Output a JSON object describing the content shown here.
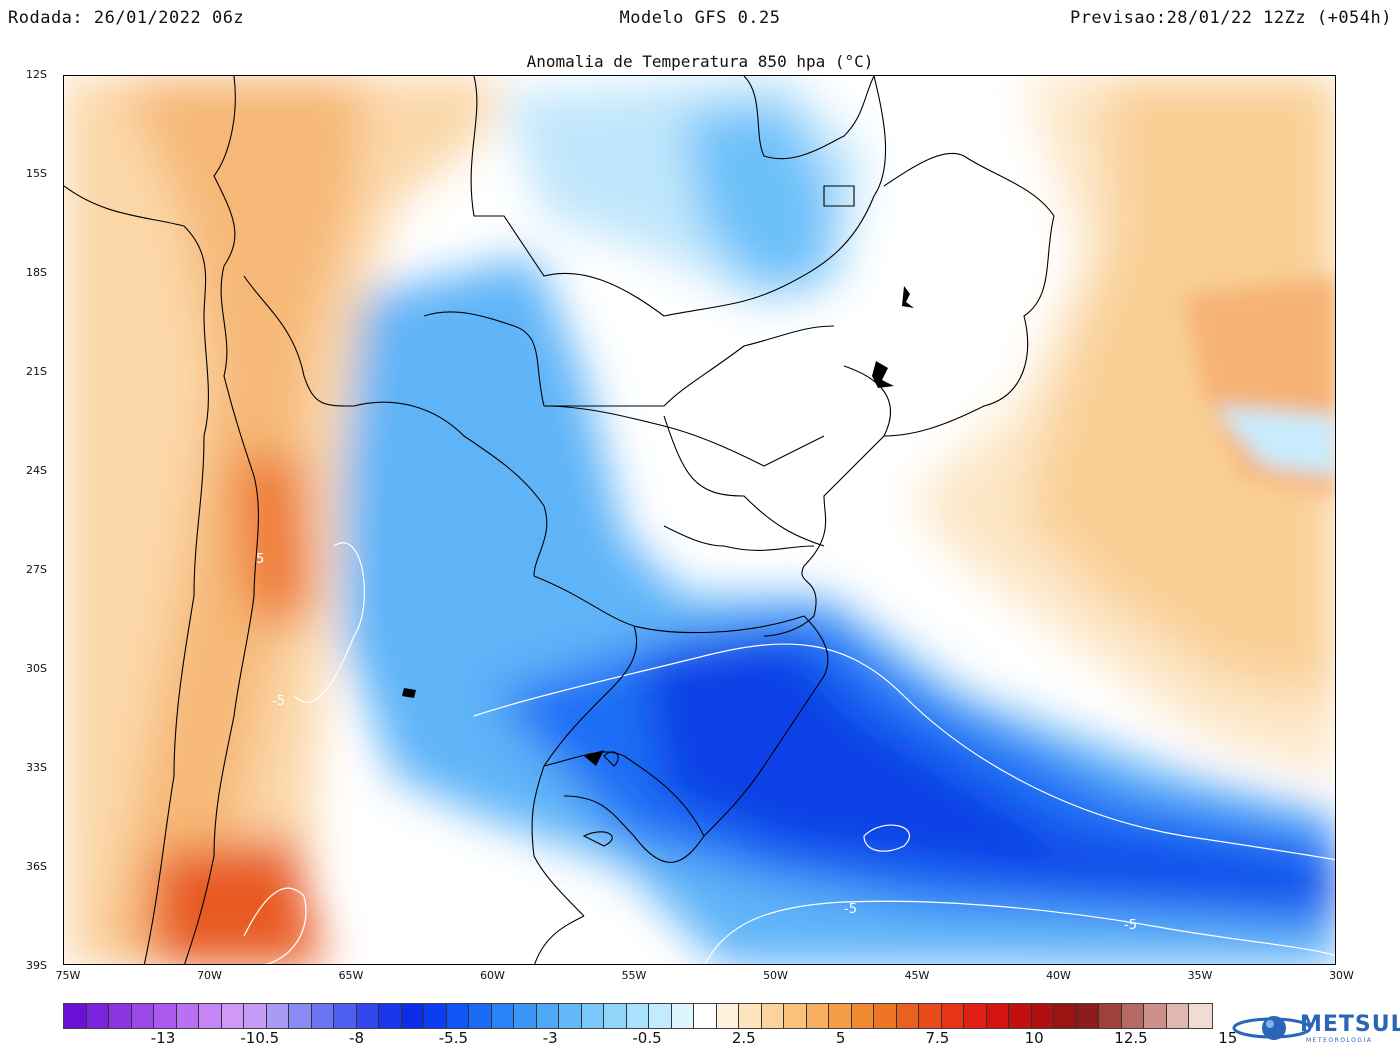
{
  "header": {
    "run": "Rodada: 26/01/2022 06z",
    "model": "Modelo GFS 0.25",
    "forecast": "Previsao:28/01/22 12Zz (+054h)"
  },
  "title": "Anomalia de Temperatura 850 hpa (°C)",
  "map": {
    "lat_labels": [
      "12S",
      "15S",
      "18S",
      "21S",
      "24S",
      "27S",
      "30S",
      "33S",
      "36S",
      "39S"
    ],
    "lon_labels": [
      "75W",
      "70W",
      "65W",
      "60W",
      "55W",
      "50W",
      "45W",
      "40W",
      "35W",
      "30W"
    ],
    "contour_labels": [
      "5",
      "-5",
      "-5",
      "-5"
    ],
    "lon_range": [
      -75,
      -30
    ],
    "lat_range": [
      -39,
      -12
    ]
  },
  "colorbar": {
    "labels": [
      "-13",
      "-10.5",
      "-8",
      "-5.5",
      "-3",
      "-0.5",
      "2.5",
      "5",
      "7.5",
      "10",
      "12.5",
      "15"
    ],
    "colors": [
      "#6a0fd6",
      "#7a22dc",
      "#8a35e2",
      "#9a48e8",
      "#aa5bee",
      "#ba70f2",
      "#c784f5",
      "#d398f7",
      "#c59cf7",
      "#a99af5",
      "#8a8af5",
      "#6b74f2",
      "#4d5ef0",
      "#3048ee",
      "#1a35ea",
      "#0c2ce8",
      "#0a3df0",
      "#0f55f5",
      "#1a6cf6",
      "#2a82f7",
      "#3c96f7",
      "#4ea8f8",
      "#62b8f9",
      "#78c8fa",
      "#90d6fb",
      "#a8e2fc",
      "#c2ecfd",
      "#dcf5fe",
      "#ffffff",
      "#fff2dc",
      "#fde4bd",
      "#fbd39c",
      "#f9c27c",
      "#f7b060",
      "#f59e48",
      "#f28a34",
      "#ee7526",
      "#ea6020",
      "#e84a1c",
      "#e53418",
      "#e02014",
      "#d41412",
      "#c21010",
      "#ae1010",
      "#9a1414",
      "#8a1c1c",
      "#a0403c",
      "#b86862",
      "#cc908a",
      "#e0b8b0",
      "#f0dcd4"
    ]
  },
  "logo": {
    "name": "METSUL",
    "subtitle": "METEOROLOGIA"
  }
}
